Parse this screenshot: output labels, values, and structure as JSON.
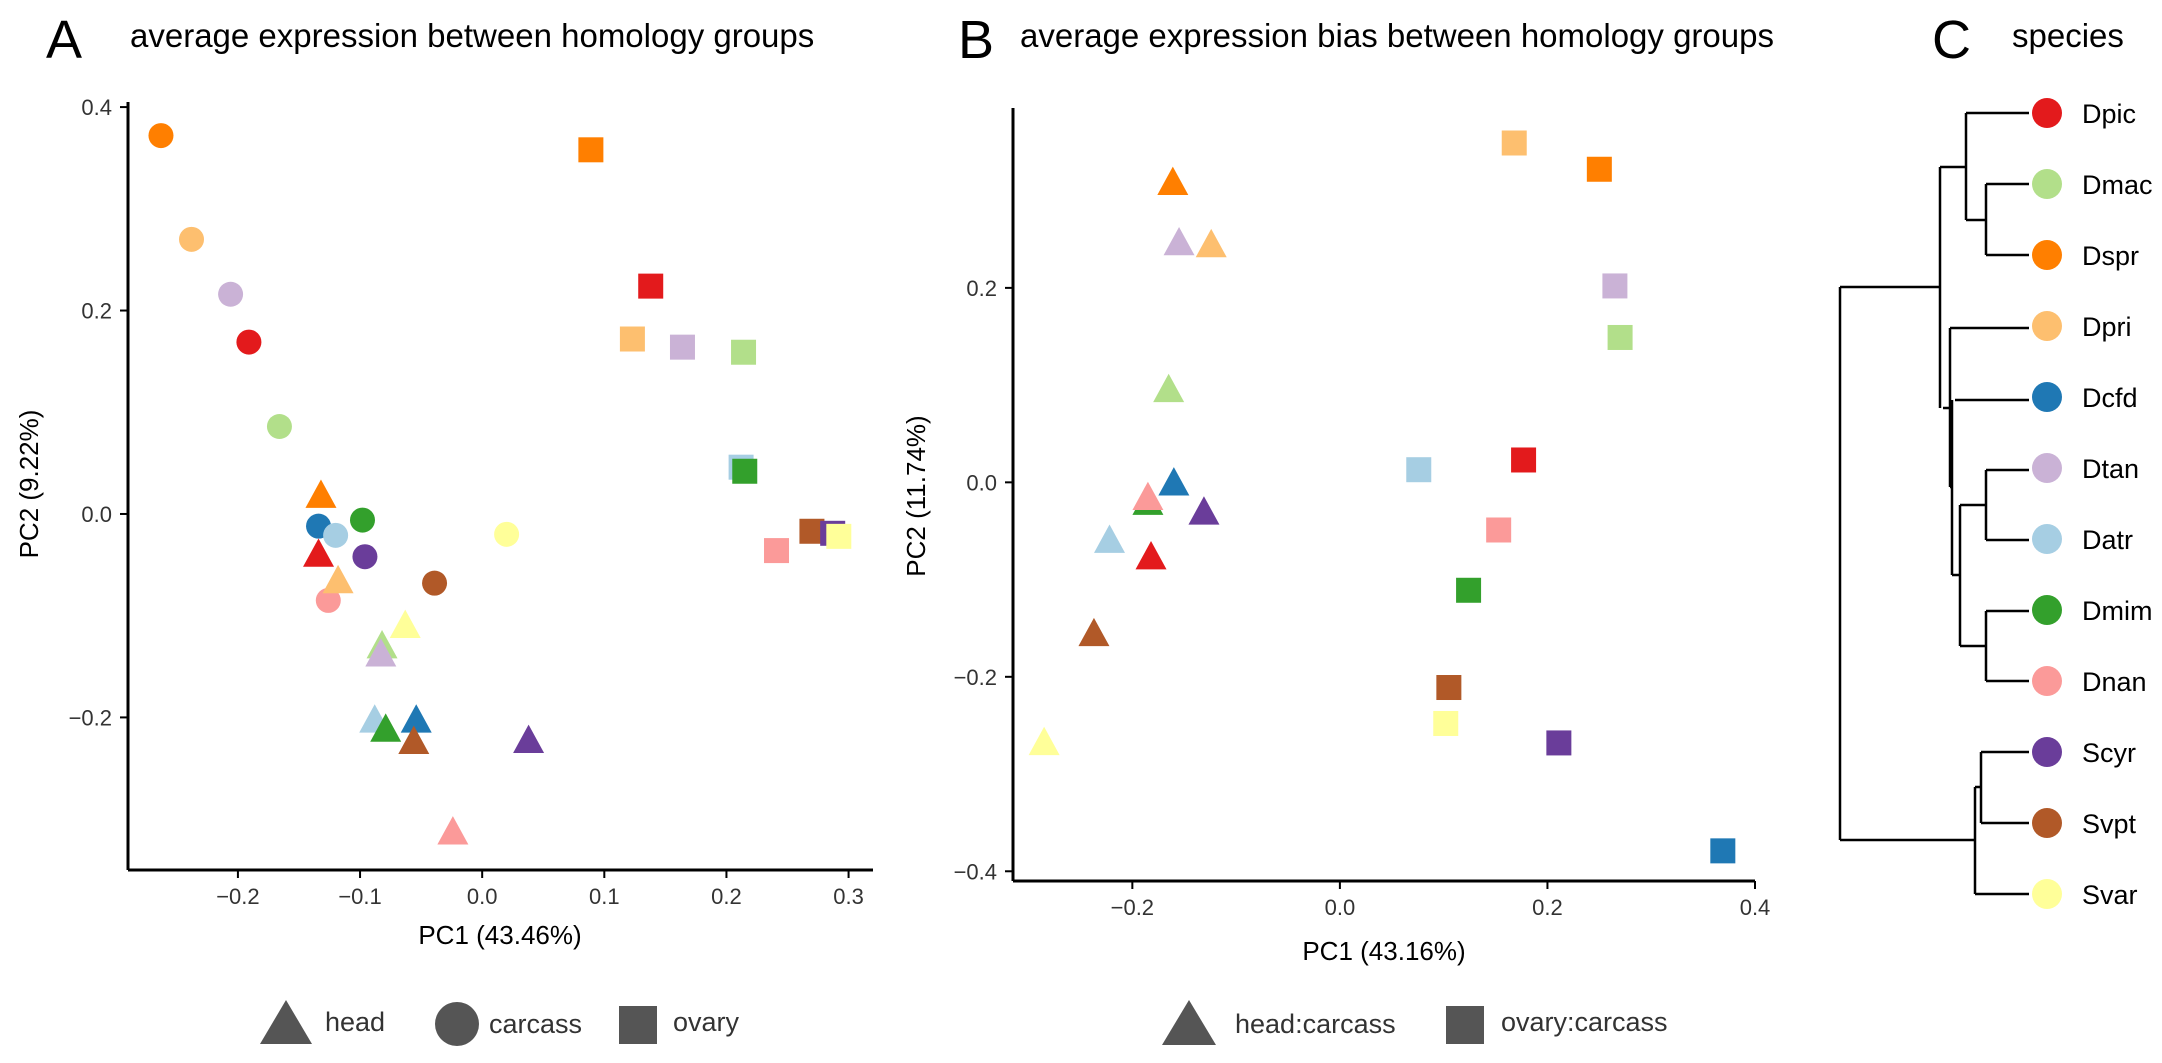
{
  "colors": {
    "Dpic": "#e31a1c",
    "Dmac": "#b2df8a",
    "Dspr": "#ff7f00",
    "Dpri": "#fdbf6f",
    "Dcfd": "#1f78b4",
    "Dtan": "#cab2d6",
    "Datr": "#a6cee3",
    "Dmim": "#33a02c",
    "Dnan": "#fb9a99",
    "Scyr": "#6a3d9a",
    "Svpt": "#b15928",
    "Svar": "#ffff99"
  },
  "panelA": {
    "letter": "A",
    "title": "average expression between homology groups",
    "legend": [
      {
        "shape": "triangle",
        "label": "head"
      },
      {
        "shape": "circle",
        "label": "carcass"
      },
      {
        "shape": "square",
        "label": "ovary"
      }
    ]
  },
  "panelB": {
    "letter": "B",
    "title": "average expression bias between homology groups",
    "legend": [
      {
        "shape": "triangle",
        "label": "head:carcass"
      },
      {
        "shape": "square",
        "label": "ovary:carcass"
      }
    ]
  },
  "panelC": {
    "letter": "C",
    "title": "species",
    "species": [
      "Dpic",
      "Dmac",
      "Dspr",
      "Dpri",
      "Dcfd",
      "Dtan",
      "Datr",
      "Dmim",
      "Dnan",
      "Scyr",
      "Svpt",
      "Svar"
    ]
  },
  "chart_data": [
    {
      "type": "scatter",
      "xlabel": "PC1 (43.46%)",
      "ylabel": "PC2 (9.22%)",
      "xlim": [
        -0.29,
        0.32
      ],
      "ylim": [
        -0.35,
        0.405
      ],
      "xticks": [
        -0.2,
        -0.1,
        0.0,
        0.1,
        0.2,
        0.3
      ],
      "xtick_labels": [
        "−0.2",
        "−0.1",
        "0.0",
        "0.1",
        "0.2",
        "0.3"
      ],
      "yticks": [
        -0.2,
        0.0,
        0.2,
        0.4
      ],
      "ytick_labels": [
        "−0.2",
        "0.0",
        "0.2",
        "0.4"
      ],
      "points": [
        {
          "species": "Dspr",
          "shape": "circle",
          "x": -0.263,
          "y": 0.372
        },
        {
          "species": "Dpri",
          "shape": "circle",
          "x": -0.238,
          "y": 0.27
        },
        {
          "species": "Dtan",
          "shape": "circle",
          "x": -0.206,
          "y": 0.216
        },
        {
          "species": "Dpic",
          "shape": "circle",
          "x": -0.191,
          "y": 0.169
        },
        {
          "species": "Dmac",
          "shape": "circle",
          "x": -0.166,
          "y": 0.086
        },
        {
          "species": "Dcfd",
          "shape": "circle",
          "x": -0.134,
          "y": -0.012
        },
        {
          "species": "Datr",
          "shape": "circle",
          "x": -0.12,
          "y": -0.021
        },
        {
          "species": "Dmim",
          "shape": "circle",
          "x": -0.098,
          "y": -0.006
        },
        {
          "species": "Scyr",
          "shape": "circle",
          "x": -0.096,
          "y": -0.042
        },
        {
          "species": "Dnan",
          "shape": "circle",
          "x": -0.126,
          "y": -0.085
        },
        {
          "species": "Svpt",
          "shape": "circle",
          "x": -0.039,
          "y": -0.068
        },
        {
          "species": "Svar",
          "shape": "circle",
          "x": 0.02,
          "y": -0.02
        },
        {
          "species": "Dspr",
          "shape": "triangle",
          "x": -0.132,
          "y": 0.018
        },
        {
          "species": "Dpic",
          "shape": "triangle",
          "x": -0.134,
          "y": -0.04
        },
        {
          "species": "Dpri",
          "shape": "triangle",
          "x": -0.118,
          "y": -0.066
        },
        {
          "species": "Svar",
          "shape": "triangle",
          "x": -0.063,
          "y": -0.11
        },
        {
          "species": "Dmac",
          "shape": "triangle",
          "x": -0.082,
          "y": -0.13
        },
        {
          "species": "Dtan",
          "shape": "triangle",
          "x": -0.083,
          "y": -0.138
        },
        {
          "species": "Datr",
          "shape": "triangle",
          "x": -0.088,
          "y": -0.203
        },
        {
          "species": "Dcfd",
          "shape": "triangle",
          "x": -0.054,
          "y": -0.203
        },
        {
          "species": "Dmim",
          "shape": "triangle",
          "x": -0.079,
          "y": -0.212
        },
        {
          "species": "Svpt",
          "shape": "triangle",
          "x": -0.056,
          "y": -0.224
        },
        {
          "species": "Scyr",
          "shape": "triangle",
          "x": 0.038,
          "y": -0.223
        },
        {
          "species": "Dnan",
          "shape": "triangle",
          "x": -0.024,
          "y": -0.313
        },
        {
          "species": "Dspr",
          "shape": "square",
          "x": 0.089,
          "y": 0.358
        },
        {
          "species": "Dpic",
          "shape": "square",
          "x": 0.138,
          "y": 0.224
        },
        {
          "species": "Dpri",
          "shape": "square",
          "x": 0.123,
          "y": 0.172
        },
        {
          "species": "Dtan",
          "shape": "square",
          "x": 0.164,
          "y": 0.164
        },
        {
          "species": "Dmac",
          "shape": "square",
          "x": 0.214,
          "y": 0.159
        },
        {
          "species": "Datr",
          "shape": "square",
          "x": 0.212,
          "y": 0.046
        },
        {
          "species": "Dmim",
          "shape": "square",
          "x": 0.215,
          "y": 0.042
        },
        {
          "species": "Svpt",
          "shape": "square",
          "x": 0.27,
          "y": -0.017
        },
        {
          "species": "Scyr",
          "shape": "square",
          "x": 0.287,
          "y": -0.019
        },
        {
          "species": "Svar",
          "shape": "square",
          "x": 0.292,
          "y": -0.022
        },
        {
          "species": "Dnan",
          "shape": "square",
          "x": 0.241,
          "y": -0.036
        }
      ]
    },
    {
      "type": "scatter",
      "xlabel": "PC1 (43.16%)",
      "ylabel": "PC2 (11.74%)",
      "xlim": [
        -0.315,
        0.4
      ],
      "ylim": [
        -0.41,
        0.385
      ],
      "xticks": [
        -0.2,
        0.0,
        0.2,
        0.4
      ],
      "xtick_labels": [
        "−0.2",
        "0.0",
        "0.2",
        "0.4"
      ],
      "yticks": [
        -0.4,
        -0.2,
        0.0,
        0.2
      ],
      "ytick_labels": [
        "−0.4",
        "−0.2",
        "0.0",
        "0.2"
      ],
      "points": [
        {
          "species": "Dspr",
          "shape": "triangle",
          "x": -0.161,
          "y": 0.308
        },
        {
          "species": "Dtan",
          "shape": "triangle",
          "x": -0.155,
          "y": 0.246
        },
        {
          "species": "Dpri",
          "shape": "triangle",
          "x": -0.124,
          "y": 0.244
        },
        {
          "species": "Dmac",
          "shape": "triangle",
          "x": -0.165,
          "y": 0.095
        },
        {
          "species": "Dcfd",
          "shape": "triangle",
          "x": -0.16,
          "y": -0.001
        },
        {
          "species": "Dmim",
          "shape": "triangle",
          "x": -0.185,
          "y": -0.021
        },
        {
          "species": "Dnan",
          "shape": "triangle",
          "x": -0.185,
          "y": -0.016
        },
        {
          "species": "Scyr",
          "shape": "triangle",
          "x": -0.131,
          "y": -0.031
        },
        {
          "species": "Datr",
          "shape": "triangle",
          "x": -0.222,
          "y": -0.06
        },
        {
          "species": "Dpic",
          "shape": "triangle",
          "x": -0.182,
          "y": -0.077
        },
        {
          "species": "Svpt",
          "shape": "triangle",
          "x": -0.237,
          "y": -0.156
        },
        {
          "species": "Svar",
          "shape": "triangle",
          "x": -0.285,
          "y": -0.268
        },
        {
          "species": "Dpri",
          "shape": "square",
          "x": 0.168,
          "y": 0.349
        },
        {
          "species": "Dspr",
          "shape": "square",
          "x": 0.25,
          "y": 0.322
        },
        {
          "species": "Dtan",
          "shape": "square",
          "x": 0.265,
          "y": 0.202
        },
        {
          "species": "Dmac",
          "shape": "square",
          "x": 0.27,
          "y": 0.149
        },
        {
          "species": "Dpic",
          "shape": "square",
          "x": 0.177,
          "y": 0.023
        },
        {
          "species": "Datr",
          "shape": "square",
          "x": 0.076,
          "y": 0.013
        },
        {
          "species": "Dnan",
          "shape": "square",
          "x": 0.153,
          "y": -0.049
        },
        {
          "species": "Dmim",
          "shape": "square",
          "x": 0.124,
          "y": -0.111
        },
        {
          "species": "Svpt",
          "shape": "square",
          "x": 0.105,
          "y": -0.211
        },
        {
          "species": "Svar",
          "shape": "square",
          "x": 0.102,
          "y": -0.248
        },
        {
          "species": "Scyr",
          "shape": "square",
          "x": 0.211,
          "y": -0.268
        },
        {
          "species": "Dcfd",
          "shape": "square",
          "x": 0.369,
          "y": -0.379
        }
      ]
    }
  ]
}
